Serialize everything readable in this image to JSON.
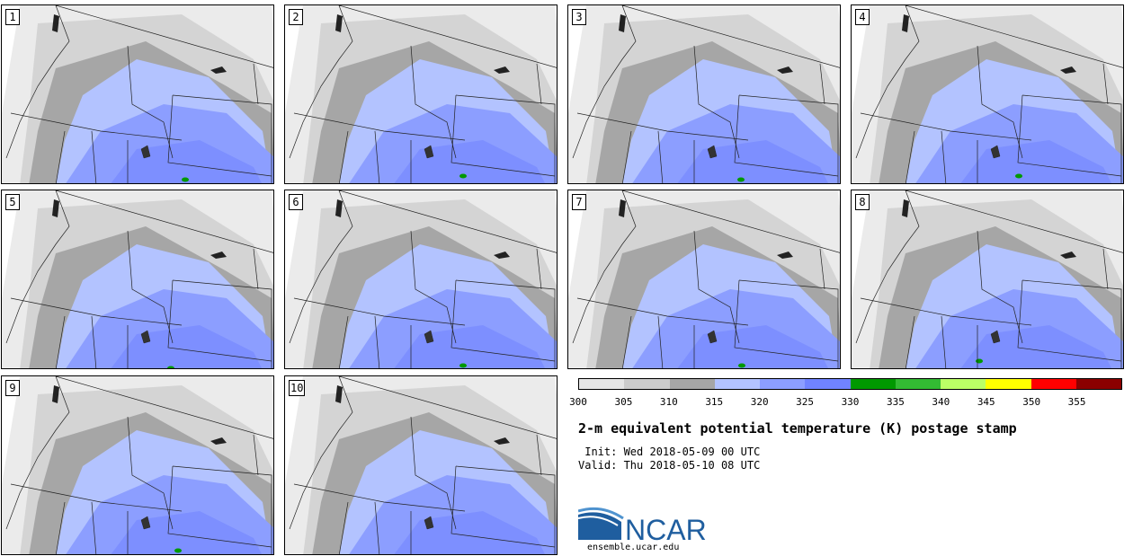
{
  "panels": [
    {
      "label": "1"
    },
    {
      "label": "2"
    },
    {
      "label": "3"
    },
    {
      "label": "4"
    },
    {
      "label": "5"
    },
    {
      "label": "6"
    },
    {
      "label": "7"
    },
    {
      "label": "8"
    },
    {
      "label": "9"
    },
    {
      "label": "10"
    }
  ],
  "colorbar": {
    "ticks": [
      "300",
      "305",
      "310",
      "315",
      "320",
      "325",
      "330",
      "335",
      "340",
      "345",
      "350",
      "355"
    ],
    "colors": [
      "#e6e6e6",
      "#cccccc",
      "#a6a6a6",
      "#b3c3ff",
      "#8c9eff",
      "#7083ff",
      "#009900",
      "#33bb33",
      "#bbff66",
      "#ffff00",
      "#ff0000",
      "#8b0000"
    ]
  },
  "title": "2-m equivalent potential temperature (K) postage stamp",
  "init": " Init: Wed 2018-05-09 00 UTC",
  "valid": "Valid: Thu 2018-05-10 08 UTC",
  "logo": {
    "text": "NCAR",
    "url": "ensemble.ucar.edu"
  }
}
